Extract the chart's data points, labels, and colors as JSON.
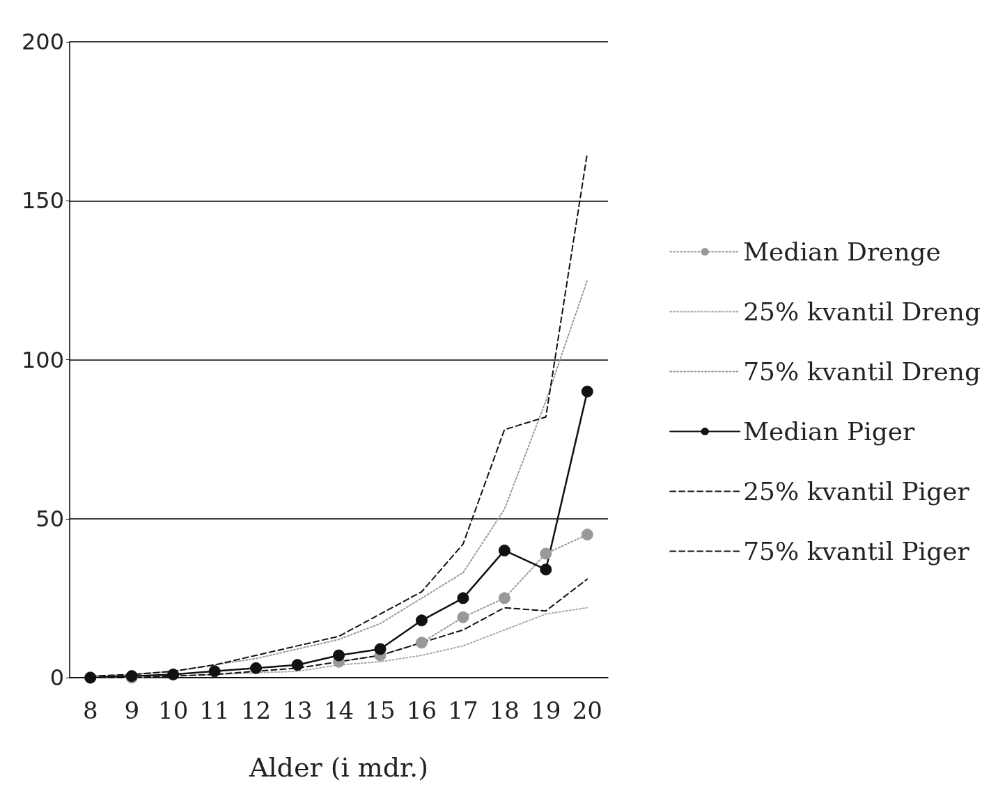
{
  "chart_data": {
    "type": "line",
    "xlabel": "Alder (i mdr.)",
    "categories": [
      "8",
      "9",
      "10",
      "11",
      "12",
      "13",
      "14",
      "15",
      "16",
      "17",
      "18",
      "19",
      "20"
    ],
    "series": [
      {
        "name": "Median Drenge",
        "color": "#999999",
        "marker": "circle",
        "line_style": "dotted",
        "values": [
          0,
          0,
          null,
          null,
          null,
          null,
          5,
          7,
          11,
          19,
          25,
          39,
          45
        ]
      },
      {
        "name": "25% kvantil Dreng",
        "color": "#aaaaaa",
        "marker": "none",
        "line_style": "dotted",
        "values": [
          0,
          0,
          0.5,
          1,
          1.5,
          2,
          4,
          5,
          7,
          10,
          15,
          20,
          22
        ]
      },
      {
        "name": "75% kvantil Dreng",
        "color": "#999999",
        "marker": "none",
        "line_style": "dotted",
        "values": [
          0.5,
          1,
          2,
          4,
          6,
          9,
          12,
          17,
          25,
          33,
          53,
          87,
          125
        ]
      },
      {
        "name": "Median Piger",
        "color": "#111111",
        "marker": "circle",
        "line_style": "solid",
        "values": [
          0,
          0.5,
          1,
          2,
          3,
          4,
          7,
          9,
          18,
          25,
          40,
          34,
          90
        ]
      },
      {
        "name": "25% kvantil Piger",
        "color": "#111111",
        "marker": "none",
        "line_style": "dashed",
        "values": [
          0,
          0,
          0.5,
          1,
          2,
          3,
          5,
          7,
          11,
          15,
          22,
          21,
          31
        ]
      },
      {
        "name": "75% kvantil Piger",
        "color": "#111111",
        "marker": "none",
        "line_style": "dashed",
        "values": [
          0.5,
          1,
          2,
          4,
          7,
          10,
          13,
          20,
          27,
          42,
          78,
          82,
          165
        ]
      }
    ],
    "ylim": [
      0,
      200
    ],
    "yticks": [
      0,
      50,
      100,
      150,
      200
    ],
    "grid": "y",
    "legend": "right"
  }
}
